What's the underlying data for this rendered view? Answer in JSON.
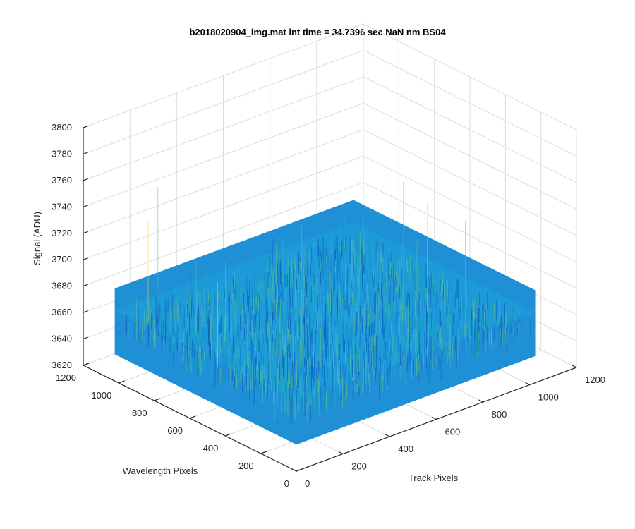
{
  "chart_data": {
    "type": "surface",
    "title": "b2018020904_img.mat int time = 34.7396 sec  NaN nm BS04",
    "xlabel": "Track Pixels",
    "ylabel": "Wavelength Pixels",
    "zlabel": "Signal (ADU)",
    "xlim": [
      0,
      1200
    ],
    "ylim": [
      0,
      1200
    ],
    "zlim": [
      3620,
      3800
    ],
    "xticks": [
      "0",
      "200",
      "400",
      "600",
      "800",
      "1000",
      "1200"
    ],
    "yticks": [
      "0",
      "200",
      "400",
      "600",
      "800",
      "1000",
      "1200"
    ],
    "zticks": [
      "3620",
      "3640",
      "3660",
      "3680",
      "3700",
      "3720",
      "3740",
      "3760",
      "3780",
      "3800"
    ],
    "surface": {
      "x_range": [
        1,
        1024
      ],
      "y_range": [
        1,
        1024
      ],
      "mean_level": 3662,
      "noise_min": 3640,
      "noise_max": 3690,
      "peak_max": 3760,
      "colormap": "parula"
    },
    "grid": true
  }
}
